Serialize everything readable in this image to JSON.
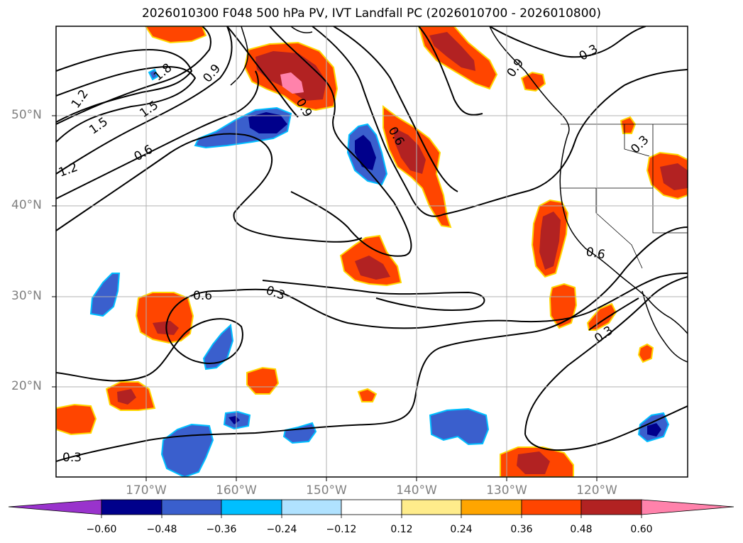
{
  "title": "2026010300 F048 500 hPa PV, IVT Landfall PC (2026010700 - 2026010800)",
  "map": {
    "projection": "PlateCarree",
    "lon_range": [
      -180,
      -110
    ],
    "lat_range": [
      10,
      60
    ],
    "lat_ticks": [
      "50°N",
      "40°N",
      "30°N",
      "20°N"
    ],
    "lon_ticks": [
      "170°W",
      "160°W",
      "150°W",
      "140°W",
      "130°W",
      "120°W"
    ],
    "grid": true
  },
  "contour_labels": [
    "1.2",
    "1.5",
    "1.8",
    "1.2",
    "1.5",
    "0.9",
    "0.6",
    "0.9",
    "0.6",
    "0.9",
    "0.3",
    "0.3",
    "0.6",
    "0.3",
    "0.6",
    "0.3",
    "0.3"
  ],
  "colorbar": {
    "ticks": [
      "−0.60",
      "−0.48",
      "−0.36",
      "−0.24",
      "−0.12",
      "0.12",
      "0.24",
      "0.36",
      "0.48",
      "0.60"
    ],
    "colors": [
      "#9933cc",
      "#00008b",
      "#3a5fcd",
      "#00bfff",
      "#b0e2ff",
      "#ffffff",
      "#ffec8b",
      "#ffa500",
      "#ff4500",
      "#b22222",
      "#ff82ab"
    ]
  }
}
